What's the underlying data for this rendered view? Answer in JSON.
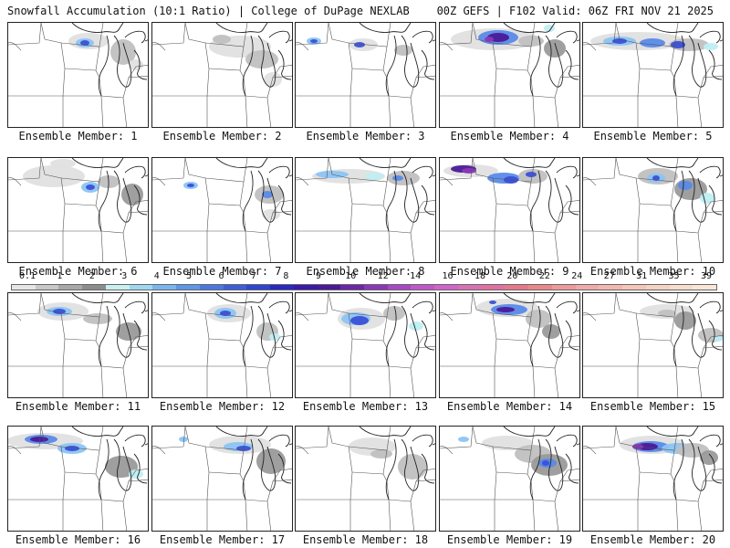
{
  "header": {
    "left_title": "Snowfall Accumulation (10:1 Ratio) | College of DuPage NEXLAB",
    "right_title": "00Z GEFS | F102 Valid: 06Z FRI NOV 21 2025"
  },
  "legend": {
    "ticks": [
      "0.1",
      "1",
      "2",
      "3",
      "4",
      "5",
      "6",
      "7",
      "8",
      "9",
      "10",
      "12",
      "14",
      "16",
      "18",
      "20",
      "22",
      "24",
      "27",
      "31",
      "35",
      "39"
    ],
    "colors": [
      "#e6e6e6",
      "#c8c8c8",
      "#a8a8a8",
      "#8c8c8c",
      "#c8f0f0",
      "#9ed8f0",
      "#7ab6ee",
      "#5e96e8",
      "#4a78e0",
      "#3c5ed8",
      "#2e46d0",
      "#2a2ac0",
      "#3a1aa8",
      "#4a1a98",
      "#6a28a8",
      "#8a38b8",
      "#a848c4",
      "#c058c8",
      "#d064c8",
      "#d870b4",
      "#e070a0",
      "#e6788c",
      "#ea8888",
      "#ee9a9a",
      "#f0aaaa",
      "#f2b8b0",
      "#f4c6b8",
      "#f6d2c2",
      "#f8dccc",
      "#fae6d8"
    ]
  },
  "members": [
    {
      "label": "Ensemble Member: 1"
    },
    {
      "label": "Ensemble Member: 2"
    },
    {
      "label": "Ensemble Member: 3"
    },
    {
      "label": "Ensemble Member: 4"
    },
    {
      "label": "Ensemble Member: 5"
    },
    {
      "label": "Ensemble Member: 6"
    },
    {
      "label": "Ensemble Member: 7"
    },
    {
      "label": "Ensemble Member: 8"
    },
    {
      "label": "Ensemble Member: 9"
    },
    {
      "label": "Ensemble Member: 10"
    },
    {
      "label": "Ensemble Member: 11"
    },
    {
      "label": "Ensemble Member: 12"
    },
    {
      "label": "Ensemble Member: 13"
    },
    {
      "label": "Ensemble Member: 14"
    },
    {
      "label": "Ensemble Member: 15"
    },
    {
      "label": "Ensemble Member: 16"
    },
    {
      "label": "Ensemble Member: 17"
    },
    {
      "label": "Ensemble Member: 18"
    },
    {
      "label": "Ensemble Member: 19"
    },
    {
      "label": "Ensemble Member: 20"
    }
  ]
}
